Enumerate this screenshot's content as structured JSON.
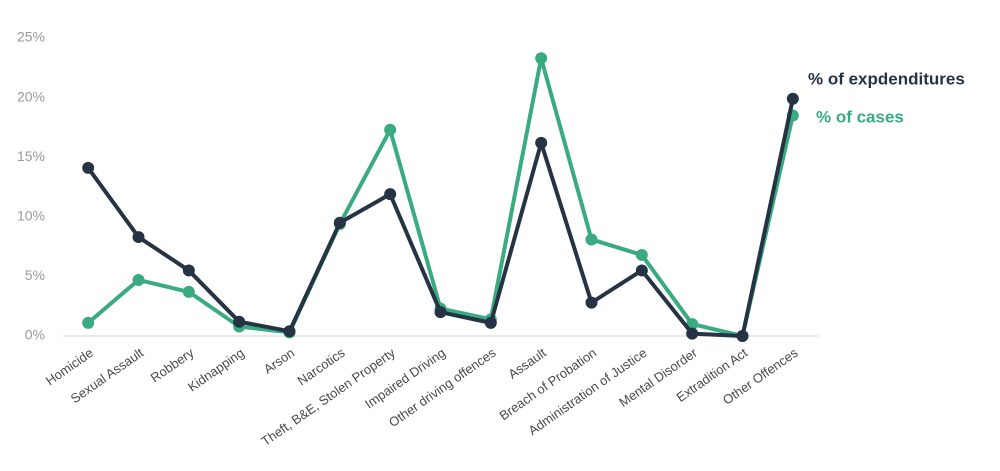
{
  "chart_data": {
    "type": "line",
    "categories": [
      "Homicide",
      "Sexual Assault",
      "Robbery",
      "Kidnapping",
      "Arson",
      "Narcotics",
      "Theft, B&E, Stolen Property",
      "Impaired Driving",
      "Other driving offences",
      "Assault",
      "Breach of Probation",
      "Administration of Justice",
      "Mental Disorder",
      "Extradition Act",
      "Other Offences"
    ],
    "series": [
      {
        "name": "% of cases",
        "color": "#3aaa80",
        "values": [
          1.1,
          4.7,
          3.7,
          0.8,
          0.3,
          9.4,
          17.3,
          2.3,
          1.4,
          23.3,
          8.1,
          6.8,
          1.0,
          0.0,
          18.5
        ]
      },
      {
        "name": "% of expdenditures",
        "color": "#253345",
        "values": [
          14.1,
          8.3,
          5.5,
          1.2,
          0.4,
          9.5,
          11.9,
          2.0,
          1.1,
          16.2,
          2.8,
          5.5,
          0.2,
          0.0,
          19.9
        ]
      }
    ],
    "ylim": [
      0,
      25
    ],
    "yticks": [
      {
        "value": 0,
        "label": "0%"
      },
      {
        "value": 5,
        "label": "5%"
      },
      {
        "value": 10,
        "label": "10%"
      },
      {
        "value": 15,
        "label": "15%"
      },
      {
        "value": 20,
        "label": "20%"
      },
      {
        "value": 25,
        "label": "25%"
      }
    ],
    "grid": false
  }
}
